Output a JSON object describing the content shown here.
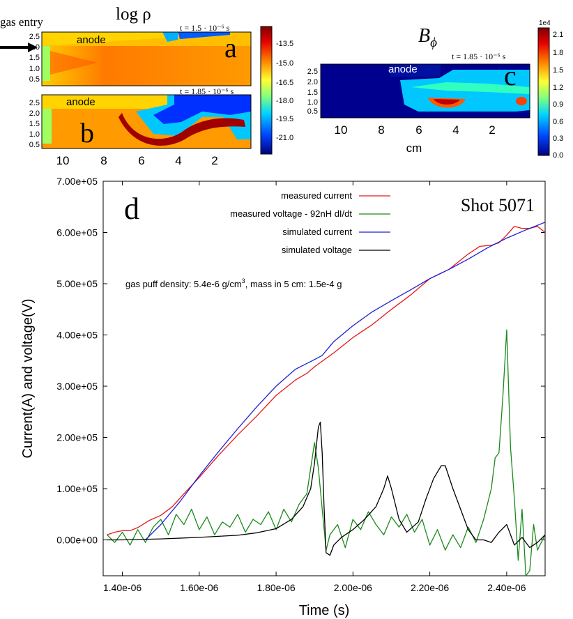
{
  "top_panels": {
    "gas_entry": "gas entry",
    "rho_title": "log ρ",
    "b_title": "B",
    "b_sub": "ϕ",
    "anode": "anode",
    "panel_a": {
      "letter": "a",
      "time": "t = 1.5 · 10⁻⁶ s"
    },
    "panel_b": {
      "letter": "b",
      "time": "t = 1.85 · 10⁻⁶ s"
    },
    "panel_c": {
      "letter": "c",
      "time": "t = 1.85 · 10⁻⁶ s"
    },
    "y_ticks": [
      "2.5",
      "2.0",
      "1.5",
      "1.0",
      "0.5"
    ],
    "x_ticks": [
      "10",
      "8",
      "6",
      "4",
      "2"
    ],
    "x_unit": "cm",
    "rho_colorbar": [
      "-13.5",
      "-15.0",
      "-16.5",
      "-18.0",
      "-19.5",
      "-21.0"
    ],
    "b_colorbar_exp": "1e4",
    "b_colorbar": [
      "2.1",
      "1.8",
      "1.5",
      "1.2",
      "0.9",
      "0.6",
      "0.3",
      "0.0"
    ]
  },
  "chart_data": {
    "type": "line",
    "panel_letter": "d",
    "shot_label": "Shot 5071",
    "annotation": "gas puff density: 5.4e-6 g/cm",
    "annotation_sup": "3",
    "annotation_tail": ", mass in 5 cm: 1.5e-4 g",
    "xlabel": "Time (s)",
    "ylabel": "Current(A) and voltage(V)",
    "xlim": [
      1.35e-06,
      2.5e-06
    ],
    "ylim": [
      -70000,
      700000
    ],
    "x_ticks": [
      1.4e-06,
      1.6e-06,
      1.8e-06,
      2e-06,
      2.2e-06,
      2.4e-06
    ],
    "x_tick_labels": [
      "1.40e-06",
      "1.60e-06",
      "1.80e-06",
      "2.00e-06",
      "2.20e-06",
      "2.40e-06"
    ],
    "y_ticks": [
      0,
      100000,
      200000,
      300000,
      400000,
      500000,
      600000,
      700000
    ],
    "y_tick_labels": [
      "0.00e+00",
      "1.00e+05",
      "2.00e+05",
      "3.00e+05",
      "4.00e+05",
      "5.00e+05",
      "6.00e+05",
      "7.00e+05"
    ],
    "series": [
      {
        "name": "measured current",
        "color": "#e41a1c",
        "x": [
          1.36e-06,
          1.38e-06,
          1.4e-06,
          1.42e-06,
          1.44e-06,
          1.47e-06,
          1.5e-06,
          1.53e-06,
          1.56e-06,
          1.6e-06,
          1.65e-06,
          1.7e-06,
          1.75e-06,
          1.8e-06,
          1.85e-06,
          1.88e-06,
          1.9e-06,
          1.95e-06,
          2e-06,
          2.05e-06,
          2.1e-06,
          2.15e-06,
          2.2e-06,
          2.25e-06,
          2.3e-06,
          2.33e-06,
          2.36e-06,
          2.38e-06,
          2.4e-06,
          2.42e-06,
          2.44e-06,
          2.46e-06,
          2.48e-06,
          2.5e-06
        ],
        "values": [
          10000,
          15000,
          18000,
          18000,
          24000,
          38000,
          48000,
          65000,
          90000,
          122000,
          165000,
          205000,
          242000,
          282000,
          312000,
          325000,
          338000,
          365000,
          395000,
          420000,
          450000,
          478000,
          510000,
          528000,
          558000,
          573000,
          575000,
          580000,
          595000,
          612000,
          608000,
          608000,
          612000,
          600000
        ]
      },
      {
        "name": "measured voltage - 92nH dI/dt",
        "color": "#1a8a1a",
        "x": [
          1.36e-06,
          1.38e-06,
          1.4e-06,
          1.42e-06,
          1.44e-06,
          1.46e-06,
          1.48e-06,
          1.5e-06,
          1.52e-06,
          1.54e-06,
          1.56e-06,
          1.58e-06,
          1.6e-06,
          1.62e-06,
          1.64e-06,
          1.66e-06,
          1.68e-06,
          1.7e-06,
          1.72e-06,
          1.74e-06,
          1.76e-06,
          1.78e-06,
          1.8e-06,
          1.82e-06,
          1.84e-06,
          1.86e-06,
          1.88e-06,
          1.9e-06,
          1.91e-06,
          1.92e-06,
          1.93e-06,
          1.94e-06,
          1.96e-06,
          1.98e-06,
          2e-06,
          2.02e-06,
          2.04e-06,
          2.06e-06,
          2.08e-06,
          2.1e-06,
          2.12e-06,
          2.14e-06,
          2.16e-06,
          2.18e-06,
          2.2e-06,
          2.22e-06,
          2.24e-06,
          2.26e-06,
          2.28e-06,
          2.3e-06,
          2.32e-06,
          2.34e-06,
          2.36e-06,
          2.37e-06,
          2.38e-06,
          2.39e-06,
          2.4e-06,
          2.41e-06,
          2.42e-06,
          2.43e-06,
          2.44e-06,
          2.45e-06,
          2.46e-06,
          2.47e-06,
          2.48e-06,
          2.5e-06
        ],
        "values": [
          10000,
          -5000,
          15000,
          -10000,
          20000,
          -5000,
          25000,
          40000,
          10000,
          50000,
          30000,
          60000,
          20000,
          45000,
          10000,
          35000,
          25000,
          50000,
          15000,
          40000,
          30000,
          55000,
          20000,
          60000,
          35000,
          70000,
          90000,
          190000,
          140000,
          60000,
          -20000,
          10000,
          30000,
          -15000,
          40000,
          20000,
          55000,
          30000,
          10000,
          45000,
          25000,
          50000,
          15000,
          40000,
          -10000,
          20000,
          -20000,
          10000,
          -15000,
          25000,
          -5000,
          40000,
          100000,
          160000,
          170000,
          280000,
          410000,
          180000,
          80000,
          -40000,
          60000,
          -70000,
          -60000,
          30000,
          -20000,
          10000
        ]
      },
      {
        "name": "simulated current",
        "color": "#1f1fd4",
        "x": [
          1.46e-06,
          1.5e-06,
          1.55e-06,
          1.6e-06,
          1.65e-06,
          1.7e-06,
          1.75e-06,
          1.8e-06,
          1.85e-06,
          1.9e-06,
          1.92e-06,
          1.95e-06,
          2e-06,
          2.05e-06,
          2.1e-06,
          2.15e-06,
          2.2e-06,
          2.25e-06,
          2.3e-06,
          2.35e-06,
          2.4e-06,
          2.45e-06,
          2.5e-06
        ],
        "values": [
          0,
          30000,
          75000,
          125000,
          172000,
          217000,
          260000,
          300000,
          333000,
          352000,
          360000,
          387000,
          418000,
          445000,
          467000,
          488000,
          510000,
          528000,
          548000,
          570000,
          589000,
          605000,
          620000
        ]
      },
      {
        "name": "simulated voltage",
        "color": "#000000",
        "x": [
          1.36e-06,
          1.4e-06,
          1.5e-06,
          1.6e-06,
          1.7e-06,
          1.75e-06,
          1.8e-06,
          1.84e-06,
          1.87e-06,
          1.89e-06,
          1.9e-06,
          1.91e-06,
          1.915e-06,
          1.92e-06,
          1.925e-06,
          1.93e-06,
          1.94e-06,
          1.95e-06,
          1.97e-06,
          2e-06,
          2.03e-06,
          2.06e-06,
          2.08e-06,
          2.09e-06,
          2.1e-06,
          2.12e-06,
          2.14e-06,
          2.17e-06,
          2.19e-06,
          2.21e-06,
          2.23e-06,
          2.24e-06,
          2.26e-06,
          2.28e-06,
          2.3e-06,
          2.32e-06,
          2.34e-06,
          2.36e-06,
          2.38e-06,
          2.4e-06,
          2.42e-06,
          2.44e-06,
          2.46e-06,
          2.48e-06,
          2.5e-06
        ],
        "values": [
          0,
          0,
          2000,
          5000,
          9000,
          14000,
          22000,
          40000,
          65000,
          100000,
          150000,
          220000,
          230000,
          170000,
          60000,
          -25000,
          -30000,
          -10000,
          5000,
          20000,
          40000,
          65000,
          100000,
          125000,
          100000,
          40000,
          15000,
          35000,
          80000,
          120000,
          145000,
          145000,
          100000,
          60000,
          20000,
          0,
          0,
          -5000,
          15000,
          30000,
          -10000,
          5000,
          -15000,
          -5000,
          10000
        ]
      }
    ]
  }
}
